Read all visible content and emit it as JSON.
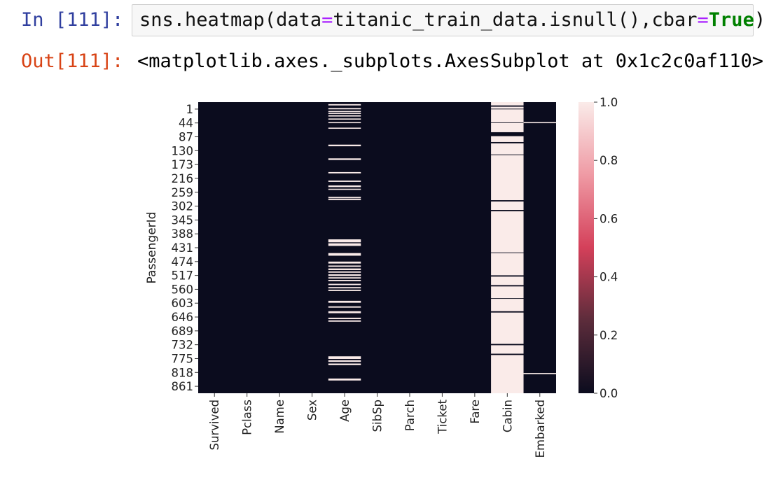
{
  "cell_in": {
    "prompt": "In [111]:",
    "code": {
      "call": "sns.heatmap(data",
      "eq1": "=",
      "arg1": "titanic_train_data.isnull(),cbar",
      "eq2": "=",
      "kw": "True",
      "close": ")"
    }
  },
  "cell_out": {
    "prompt": "Out[111]:",
    "text": "<matplotlib.axes._subplots.AxesSubplot at 0x1c2c0af110>"
  },
  "chart_data": {
    "type": "heatmap",
    "ylabel": "PassengerId",
    "xlabel": "",
    "columns": [
      "Survived",
      "Pclass",
      "Name",
      "Sex",
      "Age",
      "SibSp",
      "Parch",
      "Ticket",
      "Fare",
      "Cabin",
      "Embarked"
    ],
    "row_ticks": [
      "1",
      "44",
      "87",
      "130",
      "173",
      "216",
      "259",
      "302",
      "345",
      "388",
      "431",
      "474",
      "517",
      "560",
      "603",
      "646",
      "689",
      "732",
      "775",
      "818",
      "861"
    ],
    "n_rows": 891,
    "colorbar": {
      "ticks": [
        "0.0",
        "0.2",
        "0.4",
        "0.6",
        "0.8",
        "1.0"
      ],
      "range": [
        0,
        1
      ],
      "colors": [
        "#0b0c1e",
        "#5c2c3b",
        "#d4405a",
        "#ef9aa4",
        "#faebe9"
      ]
    },
    "cell_colors": {
      "false": "#0b0c1e",
      "true": "#faebe9"
    },
    "missing_rows": {
      "Age": [
        [
          6,
          10
        ],
        [
          18,
          22
        ],
        [
          27,
          30
        ],
        [
          33,
          36
        ],
        [
          40,
          44
        ],
        [
          50,
          53
        ],
        [
          61,
          64
        ],
        [
          78,
          81
        ],
        [
          130,
          135
        ],
        [
          172,
          177
        ],
        [
          214,
          218
        ],
        [
          240,
          244
        ],
        [
          255,
          260
        ],
        [
          265,
          268
        ],
        [
          290,
          294
        ],
        [
          296,
          300
        ],
        [
          420,
          429
        ],
        [
          432,
          440
        ],
        [
          462,
          470
        ],
        [
          488,
          494
        ],
        [
          500,
          504
        ],
        [
          509,
          514
        ],
        [
          518,
          522
        ],
        [
          527,
          532
        ],
        [
          536,
          540
        ],
        [
          544,
          548
        ],
        [
          556,
          560
        ],
        [
          566,
          570
        ],
        [
          574,
          578
        ],
        [
          608,
          614
        ],
        [
          625,
          629
        ],
        [
          640,
          646
        ],
        [
          660,
          664
        ],
        [
          668,
          672
        ],
        [
          778,
          786
        ],
        [
          790,
          795
        ],
        [
          800,
          805
        ],
        [
          846,
          852
        ]
      ],
      "Cabin": [
        [
          0,
          10
        ],
        [
          14,
          20
        ],
        [
          22,
          62
        ],
        [
          64,
          92
        ],
        [
          104,
          122
        ],
        [
          126,
          160
        ],
        [
          162,
          300
        ],
        [
          304,
          330
        ],
        [
          334,
          460
        ],
        [
          462,
          530
        ],
        [
          534,
          560
        ],
        [
          564,
          600
        ],
        [
          602,
          640
        ],
        [
          644,
          740
        ],
        [
          744,
          770
        ],
        [
          774,
          891
        ]
      ],
      "Embarked": [
        [
          61,
          62
        ],
        [
          829,
          830
        ]
      ]
    }
  }
}
